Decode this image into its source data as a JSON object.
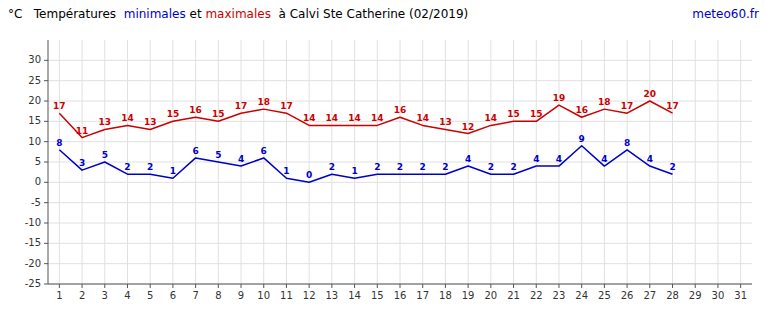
{
  "chart_data": {
    "type": "line",
    "title": "°C   Températures  minimales et maximales  à Calvi Ste Catherine (02/2019)",
    "annotations": [
      {
        "text": "meteo60.fr",
        "color": "#0000cc"
      }
    ],
    "x": [
      1,
      2,
      3,
      4,
      5,
      6,
      7,
      8,
      9,
      10,
      11,
      12,
      13,
      14,
      15,
      16,
      17,
      18,
      19,
      20,
      21,
      22,
      23,
      24,
      25,
      26,
      27,
      28
    ],
    "series": [
      {
        "name": "maximales",
        "color": "#cc0000",
        "values": [
          17,
          11,
          13,
          14,
          13,
          15,
          16,
          15,
          17,
          18,
          17,
          14,
          14,
          14,
          14,
          16,
          14,
          13,
          12,
          14,
          15,
          15,
          19,
          16,
          18,
          17,
          20,
          17
        ]
      },
      {
        "name": "minimales",
        "color": "#0000cc",
        "values": [
          8,
          3,
          5,
          2,
          2,
          1,
          6,
          5,
          4,
          6,
          1,
          0,
          2,
          1,
          2,
          2,
          2,
          2,
          4,
          2,
          2,
          4,
          4,
          9,
          4,
          8,
          4,
          2
        ]
      }
    ],
    "xlim": [
      0.5,
      31.5
    ],
    "xticks": [
      1,
      2,
      3,
      4,
      5,
      6,
      7,
      8,
      9,
      10,
      11,
      12,
      13,
      14,
      15,
      16,
      17,
      18,
      19,
      20,
      21,
      22,
      23,
      24,
      25,
      26,
      27,
      28,
      29,
      30,
      31
    ],
    "ylim": [
      -25,
      35
    ],
    "yticks": [
      -25,
      -20,
      -15,
      -10,
      -5,
      0,
      5,
      10,
      15,
      20,
      25,
      30
    ],
    "grid": true,
    "data_labels": true
  }
}
